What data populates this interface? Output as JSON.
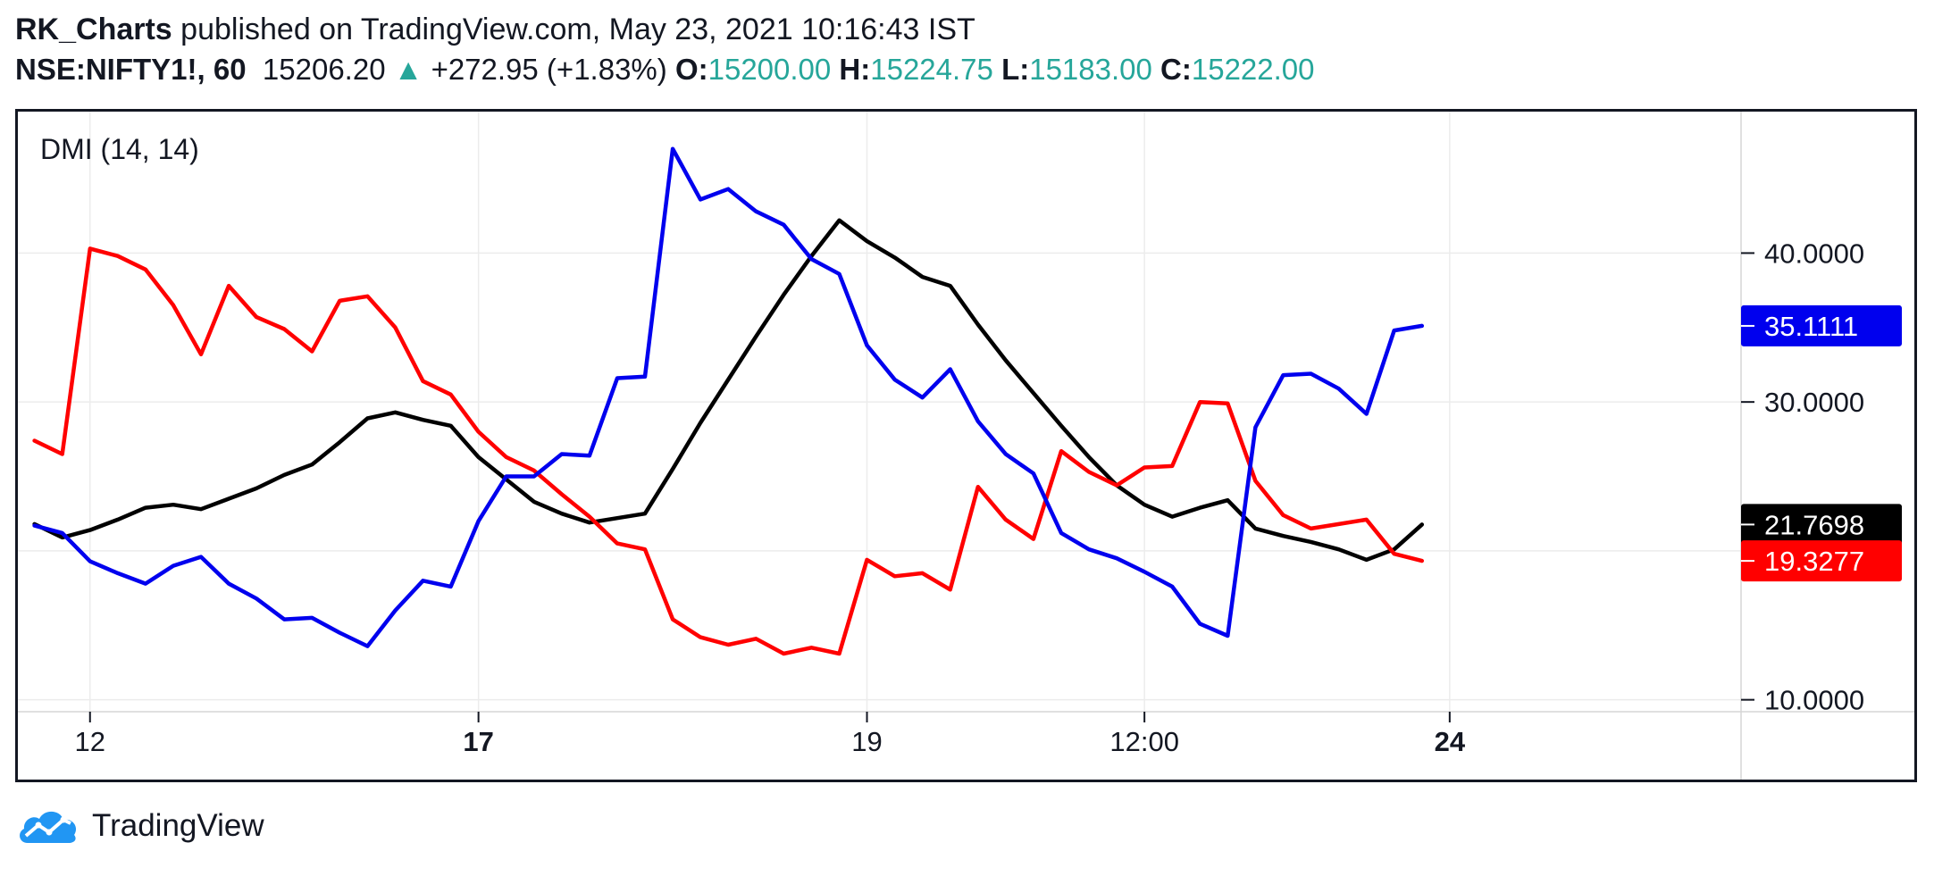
{
  "header": {
    "author": "RK_Charts",
    "published_text": "published on TradingView.com, May 23, 2021 10:16:43 IST",
    "symbol": "NSE:NIFTY1!, 60",
    "price": "15206.20",
    "change_arrow": "▲",
    "change": "+272.95 (+1.83%)",
    "open_label": "O:",
    "open": "15200.00",
    "high_label": "H:",
    "high": "15224.75",
    "low_label": "L:",
    "low": "15183.00",
    "close_label": "C:",
    "close": "15222.00"
  },
  "footer": {
    "brand": "TradingView",
    "logo_icon": "tradingview-cloud-icon"
  },
  "colors": {
    "plus_di": "#0000ee",
    "minus_di": "#ff0000",
    "adx": "#000000",
    "green": "#26a69a"
  },
  "chart_data": {
    "type": "line",
    "indicator_label": "DMI (14, 14)",
    "ylim": [
      9.2,
      49.5
    ],
    "y_ticks": [
      {
        "value": 10,
        "label": "10.0000"
      },
      {
        "value": 30,
        "label": "30.0000"
      },
      {
        "value": 40,
        "label": "40.0000"
      }
    ],
    "y_gridlines": [
      10,
      20,
      30,
      40
    ],
    "x_ticks": [
      {
        "index": 2,
        "label": "12",
        "bold": false
      },
      {
        "index": 16,
        "label": "17",
        "bold": true
      },
      {
        "index": 30,
        "label": "19",
        "bold": false
      },
      {
        "index": 40,
        "label": "12:00",
        "bold": false
      },
      {
        "index": 51,
        "label": "24",
        "bold": true
      }
    ],
    "x_index_range": [
      -0.6,
      61.5
    ],
    "grid": true,
    "last_value_badges": [
      {
        "series": "+DI",
        "label": "35.1111",
        "value": 35.1111
      },
      {
        "series": "ADX",
        "label": "21.7698",
        "value": 21.7698
      },
      {
        "series": "-DI",
        "label": "19.3277",
        "value": 19.3277
      }
    ],
    "series": [
      {
        "key": "plus_di",
        "values": [
          21.7,
          21.2,
          19.3,
          18.5,
          17.8,
          19.0,
          19.6,
          17.8,
          16.8,
          15.4,
          15.5,
          14.5,
          13.6,
          16.0,
          18.0,
          17.6,
          22.0,
          25.0,
          25.0,
          26.5,
          26.4,
          31.6,
          31.7,
          47.0,
          43.6,
          44.3,
          42.8,
          41.9,
          39.6,
          38.6,
          33.8,
          31.5,
          30.3,
          32.2,
          28.7,
          26.5,
          25.2,
          21.2,
          20.1,
          19.5,
          18.6,
          17.6,
          15.1,
          14.3,
          28.3,
          31.8,
          31.9,
          30.9,
          29.2,
          34.8,
          35.1111
        ]
      },
      {
        "key": "minus_di",
        "values": [
          27.4,
          26.5,
          40.3,
          39.8,
          38.9,
          36.5,
          33.2,
          37.8,
          35.7,
          34.9,
          33.4,
          36.8,
          37.1,
          35.0,
          31.4,
          30.5,
          28.0,
          26.3,
          25.4,
          23.8,
          22.3,
          20.5,
          20.1,
          15.4,
          14.2,
          13.7,
          14.1,
          13.1,
          13.5,
          13.1,
          19.4,
          18.3,
          18.5,
          17.4,
          24.3,
          22.1,
          20.8,
          26.7,
          25.3,
          24.4,
          25.6,
          25.7,
          30.0,
          29.9,
          24.7,
          22.4,
          21.5,
          21.8,
          22.1,
          19.8,
          19.3277
        ]
      },
      {
        "key": "adx",
        "values": [
          21.8,
          20.9,
          21.4,
          22.1,
          22.9,
          23.1,
          22.8,
          23.5,
          24.2,
          25.1,
          25.8,
          27.3,
          28.9,
          29.3,
          28.8,
          28.4,
          26.3,
          24.8,
          23.3,
          22.5,
          21.9,
          22.2,
          22.5,
          25.5,
          28.6,
          31.5,
          34.4,
          37.2,
          39.8,
          42.2,
          40.8,
          39.7,
          38.4,
          37.8,
          35.2,
          32.8,
          30.6,
          28.4,
          26.3,
          24.4,
          23.1,
          22.3,
          22.9,
          23.4,
          21.5,
          21.0,
          20.6,
          20.1,
          19.4,
          20.1,
          21.7698
        ]
      }
    ]
  }
}
